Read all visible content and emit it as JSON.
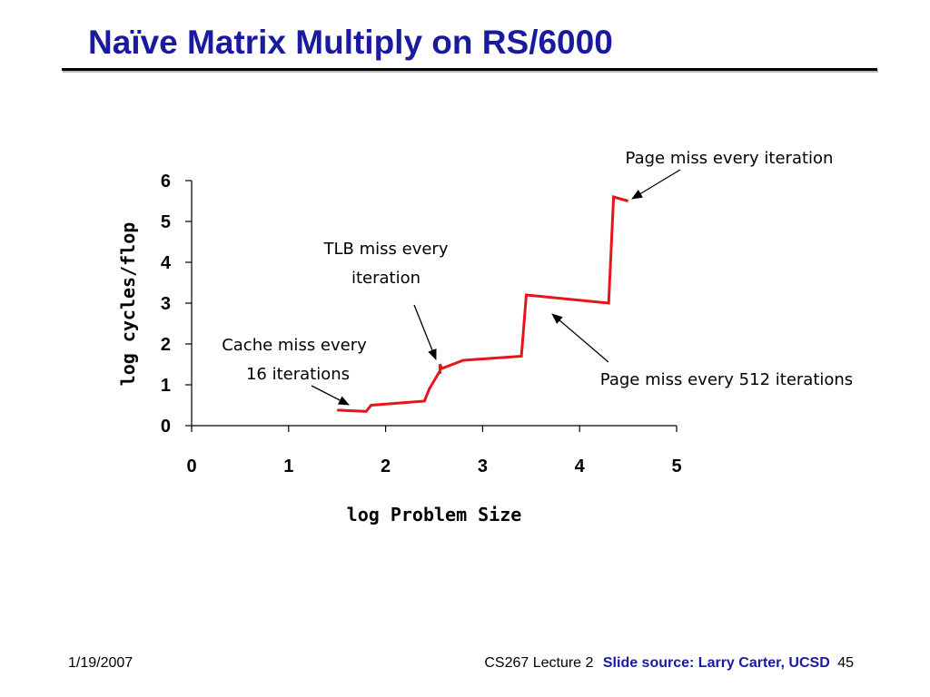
{
  "slide": {
    "title": "Naïve Matrix Multiply on RS/6000",
    "footer_date": "1/19/2007",
    "footer_course": "CS267 Lecture 2",
    "footer_source": "Slide source: Larry Carter, UCSD",
    "footer_page": "45",
    "title_color": "#1a1aa0"
  },
  "chart_data": {
    "type": "line",
    "title": "",
    "xlabel": "log Problem Size",
    "ylabel": "log cycles/flop",
    "xlim": [
      0,
      5
    ],
    "ylim": [
      0,
      6
    ],
    "xticks": [
      0,
      1,
      2,
      3,
      4,
      5
    ],
    "yticks": [
      0,
      1,
      2,
      3,
      4,
      5,
      6
    ],
    "grid": false,
    "legend": "none",
    "line_color": "#e8141a",
    "segments": [
      {
        "x": [
          1.5,
          1.8,
          1.85,
          2.4,
          2.45,
          2.55,
          2.56,
          2.56,
          2.58,
          2.8,
          3.4,
          3.45,
          4.3,
          4.35,
          4.5
        ],
        "y": [
          0.38,
          0.35,
          0.5,
          0.6,
          0.9,
          1.3,
          1.3,
          1.5,
          1.4,
          1.6,
          1.7,
          3.2,
          3.0,
          5.6,
          5.5
        ]
      }
    ],
    "annotations": [
      {
        "text": [
          "Page miss every iteration"
        ]
      },
      {
        "text": [
          "TLB miss every",
          "iteration"
        ]
      },
      {
        "text": [
          "Cache miss every",
          "16 iterations"
        ]
      },
      {
        "text": [
          "Page miss every 512 iterations"
        ]
      }
    ]
  }
}
